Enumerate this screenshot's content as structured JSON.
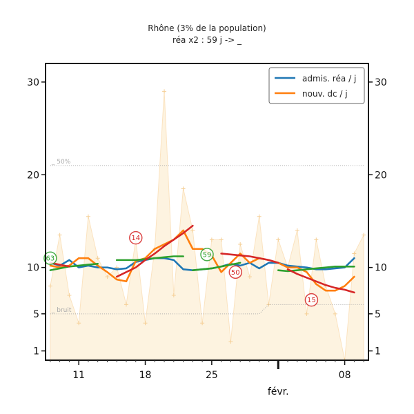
{
  "chart_data": {
    "type": "line",
    "title": "Rhône (3% de la population)",
    "subtitle": "réa x2 : 59 j -> _",
    "x_tick_labels": [
      "11",
      "18",
      "25",
      "08"
    ],
    "x_month_label": "févr.",
    "y_ticks": [
      {
        "value": 1,
        "label": "1"
      },
      {
        "value": 5,
        "label": "5"
      },
      {
        "value": 10,
        "label": "10"
      },
      {
        "value": 20,
        "label": "20"
      },
      {
        "value": 30,
        "label": "30"
      }
    ],
    "ylim": [
      0,
      32
    ],
    "xlim": [
      5.5,
      39.5
    ],
    "ref_lines": [
      {
        "label": "50%",
        "values": [
          [
            6,
            21.0
          ],
          [
            39,
            21.0
          ]
        ]
      },
      {
        "label": "bruit",
        "values": [
          [
            6,
            5.0
          ],
          [
            28,
            5.0
          ],
          [
            29,
            6.0
          ],
          [
            39,
            6.0
          ]
        ]
      }
    ],
    "legend": {
      "position": "top-right",
      "entries": [
        {
          "label": "admis. réa / j",
          "color": "#1f77b4"
        },
        {
          "label": "nouv. dc / j",
          "color": "#ff7f0e"
        }
      ]
    },
    "background_series": {
      "color": "#fcebc8",
      "x": [
        6,
        7,
        8,
        9,
        10,
        11,
        12,
        13,
        14,
        15,
        16,
        17,
        18,
        19,
        20,
        21,
        22,
        23,
        24,
        25,
        26,
        27,
        28,
        29,
        30,
        31,
        32,
        33,
        34,
        35,
        36,
        37,
        38,
        39
      ],
      "values": [
        8,
        13.5,
        7,
        4,
        15.5,
        11,
        9,
        10,
        6,
        13,
        4,
        12,
        29,
        7,
        18.5,
        14,
        4,
        13,
        13,
        2,
        12.5,
        9,
        15.5,
        6,
        13,
        10,
        14,
        5,
        13,
        8,
        5,
        0,
        11.5,
        13.5
      ]
    },
    "series": [
      {
        "name": "admis. réa / j",
        "color": "#1f77b4",
        "x": [
          6,
          7,
          8,
          9,
          10,
          11,
          12,
          13,
          14,
          15,
          16,
          17,
          18,
          19,
          20,
          21,
          22,
          23,
          24,
          25,
          26,
          27,
          28,
          29,
          30,
          31,
          32,
          33,
          34,
          35,
          36,
          37,
          38
        ],
        "values": [
          10.5,
          10.2,
          10.8,
          10.0,
          10.2,
          10.0,
          10.0,
          9.8,
          9.9,
          10.6,
          10.8,
          11.0,
          11.0,
          10.8,
          9.8,
          9.7,
          9.8,
          9.9,
          10.1,
          10.4,
          10.2,
          10.5,
          9.9,
          10.5,
          10.5,
          10.2,
          10.1,
          10.0,
          9.8,
          9.8,
          9.9,
          10.0,
          11.0
        ]
      },
      {
        "name": "nouv. dc / j",
        "color": "#ff7f0e",
        "x": [
          6,
          7,
          8,
          9,
          10,
          11,
          12,
          13,
          14,
          15,
          16,
          17,
          18,
          19,
          20,
          21,
          22,
          23,
          24,
          25,
          26,
          27,
          28,
          29,
          30,
          31,
          32,
          33,
          34,
          35,
          36,
          37,
          38
        ],
        "values": [
          10.2,
          10.0,
          10.2,
          11.0,
          11.0,
          10.2,
          9.5,
          8.7,
          8.5,
          10.7,
          11.0,
          12.0,
          12.5,
          13.0,
          14.0,
          12.0,
          12.0,
          11.3,
          9.5,
          10.5,
          11.5,
          10.5,
          11.0,
          10.8,
          10.5,
          10.0,
          10.0,
          9.5,
          8.2,
          7.5,
          7.5,
          8.0,
          9.0
        ]
      },
      {
        "name": "",
        "color": "#2ca02c",
        "x": [
          6,
          7,
          8,
          9,
          10,
          11,
          null,
          13,
          14,
          15,
          16,
          17,
          18,
          19,
          20,
          null,
          21,
          22,
          23,
          24,
          25,
          26,
          null,
          30,
          31,
          32,
          33,
          34,
          35,
          36,
          37,
          38
        ],
        "values": [
          9.7,
          9.9,
          10.1,
          10.2,
          10.3,
          10.4,
          null,
          10.8,
          10.8,
          10.8,
          10.9,
          11.0,
          11.1,
          11.2,
          11.2,
          null,
          9.7,
          9.8,
          9.9,
          10.1,
          10.3,
          10.5,
          null,
          9.7,
          9.6,
          9.7,
          9.8,
          9.9,
          10.0,
          10.1,
          10.1,
          10.1
        ]
      },
      {
        "name": "",
        "color": "#d62728",
        "x": [
          6,
          7,
          8,
          null,
          13,
          14,
          15,
          16,
          17,
          18,
          19,
          20,
          21,
          null,
          24,
          25,
          26,
          27,
          28,
          29,
          30,
          null,
          31,
          32,
          33,
          34,
          35,
          36,
          37,
          38
        ],
        "values": [
          10.5,
          10.3,
          10.1,
          null,
          9.0,
          9.5,
          10.0,
          10.8,
          11.5,
          12.3,
          13.0,
          13.7,
          14.5,
          null,
          11.5,
          11.4,
          11.3,
          11.2,
          11.0,
          10.8,
          10.5,
          null,
          9.8,
          9.3,
          8.9,
          8.5,
          8.1,
          7.8,
          7.6,
          7.3
        ]
      }
    ],
    "annotations": [
      {
        "label": "63",
        "x": 6,
        "y": 11.0,
        "color": "#2ca02c"
      },
      {
        "label": "14",
        "x": 15,
        "y": 13.2,
        "color": "#d62728"
      },
      {
        "label": "59",
        "x": 22.5,
        "y": 11.4,
        "color": "#2ca02c"
      },
      {
        "label": "50",
        "x": 25.5,
        "y": 9.5,
        "color": "#d62728"
      },
      {
        "label": "15",
        "x": 33.5,
        "y": 6.5,
        "color": "#d62728"
      }
    ],
    "grid": false
  }
}
